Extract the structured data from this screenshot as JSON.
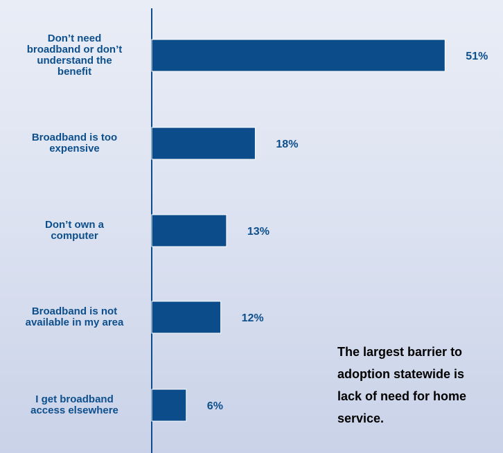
{
  "chart_data": {
    "type": "bar",
    "orientation": "horizontal",
    "categories": [
      "Don’t need broadband or don’t understand the benefit",
      "Broadband is too expensive",
      "Don’t own a computer",
      "Broadband is not available in my area",
      "I get broadband access elsewhere"
    ],
    "category_lines": [
      [
        "Don’t need",
        "broadband or don’t",
        "understand the",
        "benefit"
      ],
      [
        "Broadband is too",
        "expensive"
      ],
      [
        "Don’t own a",
        "computer"
      ],
      [
        "Broadband is not",
        "available in my area"
      ],
      [
        "I get broadband",
        "access elsewhere"
      ]
    ],
    "values": [
      51,
      18,
      13,
      12,
      6
    ],
    "value_labels": [
      "51%",
      "18%",
      "13%",
      "12%",
      "6%"
    ],
    "xlim": [
      0,
      54
    ],
    "grid": false,
    "title": "",
    "xlabel": "",
    "ylabel": "",
    "bar_color": "#0d4c8b",
    "axis_color": "#0d4c8b",
    "label_color": "#0d4f8c"
  },
  "callout": {
    "text": "The largest barrier to\nadoption statewide is\nlack of need for home\nservice."
  }
}
